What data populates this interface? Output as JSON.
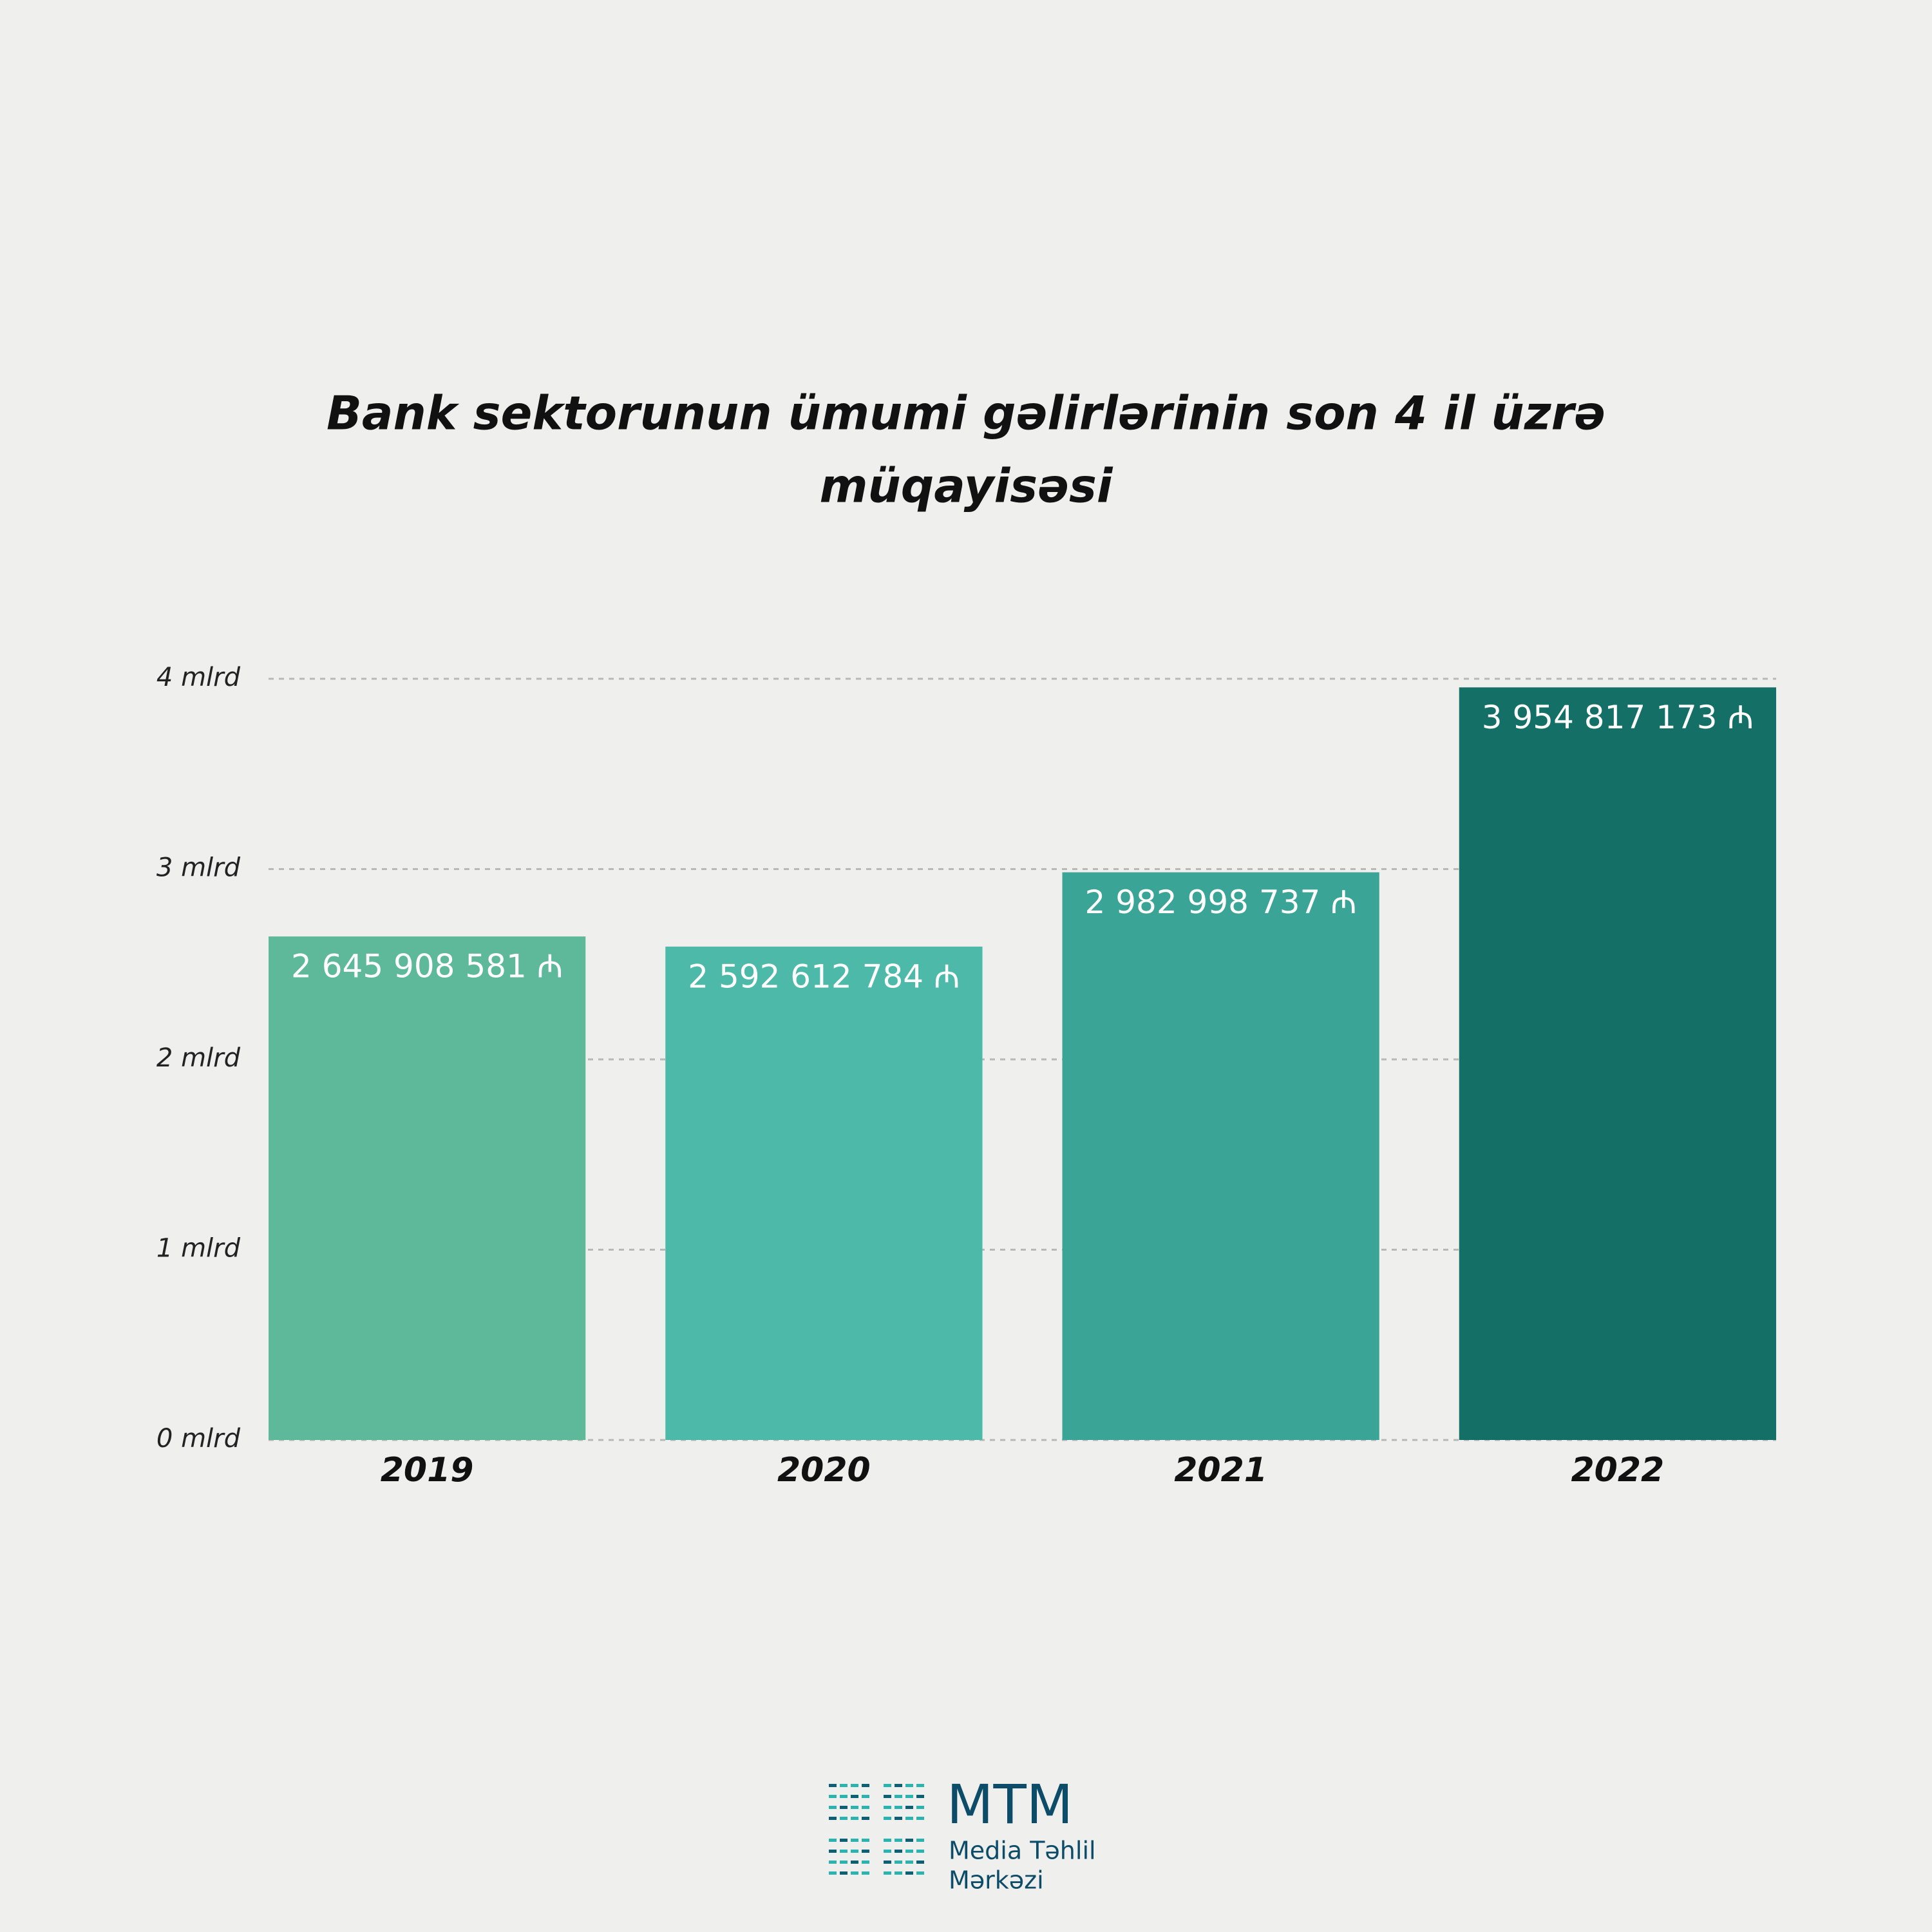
{
  "chart_data": {
    "type": "bar",
    "title": "Bank sektorunun ümumi gəlirlərinin son 4 il üzrə",
    "subtitle": "müqayisəsi",
    "categories": [
      "2019",
      "2020",
      "2021",
      "2022"
    ],
    "values": [
      2645908581,
      2592612784,
      2982998737,
      3954817173
    ],
    "value_labels": [
      "2 645 908 581 ₼",
      "2 592 612 784 ₼",
      "2 982 998 737 ₼",
      "3 954 817 173 ₼"
    ],
    "colors": [
      "#5db99a",
      "#4dbaa9",
      "#3aa497",
      "#146f66"
    ],
    "ylim": [
      0,
      4000000000
    ],
    "yticks": [
      {
        "value": 0,
        "label": "0 mlrd"
      },
      {
        "value": 1000000000,
        "label": "1 mlrd"
      },
      {
        "value": 2000000000,
        "label": "2 mlrd"
      },
      {
        "value": 3000000000,
        "label": "3 mlrd"
      },
      {
        "value": 4000000000,
        "label": "4 mlrd"
      }
    ],
    "grid": true
  },
  "logo": {
    "name": "MTM",
    "line1": "Media Təhlil",
    "line2": "Mərkəzi"
  }
}
